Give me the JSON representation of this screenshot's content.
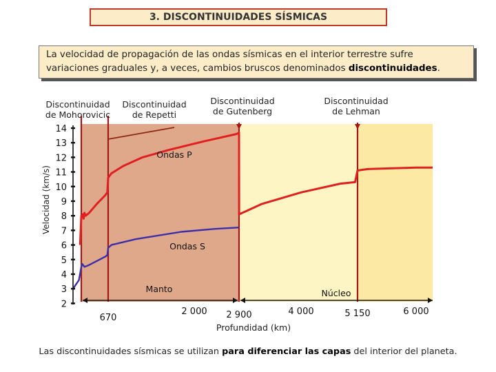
{
  "title": "3. DISCONTINUIDADES SÍSMICAS",
  "intro": {
    "before": "La velocidad de propagación de las ondas sísmicas en el interior terrestre sufre variaciones graduales y, a veces, cambios bruscos denominados ",
    "bold": "discontinuidades",
    "after": "."
  },
  "footer": {
    "part1": "Las discontinuidades sísmicas se utilizan ",
    "bold": "para diferenciar las capas",
    "part2": " del interior del planeta."
  },
  "colors": {
    "mantle": "#dfa88a",
    "core": "#fdf5c4",
    "core_inner": "#fbe9a4",
    "p_wave": "#e02020",
    "s_wave": "#3b2ea8",
    "boundary": "#a01818"
  },
  "discontinuities": [
    {
      "line1": "Discontinuidad",
      "line2": "de Mohorovicic"
    },
    {
      "line1": "Discontinuidad",
      "line2": "de Repetti"
    },
    {
      "line1": "Discontinuidad",
      "line2": "de Gutenberg"
    },
    {
      "line1": "Discontinuidad",
      "line2": "de Lehman"
    }
  ],
  "chart_data": {
    "type": "line",
    "ylabel": "Velocidad (km/s)",
    "xlabel": "Profundidad (km)",
    "y_ticks": [
      "14",
      "13",
      "12",
      "11",
      "10",
      "9",
      "8",
      "7",
      "6",
      "5",
      "4",
      "3",
      "2"
    ],
    "ylim": [
      2,
      14
    ],
    "x_tick_labels": [
      {
        "label": "670",
        "value": 670
      },
      {
        "label": "2 000",
        "value": 2000
      },
      {
        "label": "2 900",
        "value": 2900
      },
      {
        "label": "4 000",
        "value": 4000
      },
      {
        "label": "5 150",
        "value": 5150
      },
      {
        "label": "6 000",
        "value": 6000
      }
    ],
    "boundaries_km": [
      35,
      670,
      2900,
      5150
    ],
    "regions": [
      {
        "label": "Manto",
        "from_km": 35,
        "to_km": 2900
      },
      {
        "label": "Núcleo",
        "from_km": 2900,
        "to_km": 6371
      }
    ],
    "series": [
      {
        "name": "Ondas P",
        "points": [
          [
            30,
            6.0
          ],
          [
            35,
            8.0
          ],
          [
            70,
            8.1
          ],
          [
            90,
            7.8
          ],
          [
            110,
            8.2
          ],
          [
            140,
            8.0
          ],
          [
            220,
            8.2
          ],
          [
            400,
            8.8
          ],
          [
            600,
            9.4
          ],
          [
            650,
            9.6
          ],
          [
            670,
            10.6
          ],
          [
            720,
            10.9
          ],
          [
            900,
            11.4
          ],
          [
            1200,
            12.0
          ],
          [
            1600,
            12.5
          ],
          [
            2200,
            13.1
          ],
          [
            2850,
            13.6
          ],
          [
            2900,
            13.7
          ],
          [
            2901,
            8.1
          ],
          [
            3300,
            8.8
          ],
          [
            4000,
            9.6
          ],
          [
            4800,
            10.2
          ],
          [
            5100,
            10.3
          ],
          [
            5150,
            11.1
          ],
          [
            5300,
            11.2
          ],
          [
            6000,
            11.3
          ],
          [
            6371,
            11.3
          ]
        ]
      },
      {
        "name": "Ondas S",
        "points": [
          [
            0,
            3.0
          ],
          [
            25,
            3.6
          ],
          [
            35,
            4.5
          ],
          [
            60,
            4.7
          ],
          [
            110,
            4.5
          ],
          [
            200,
            4.6
          ],
          [
            400,
            4.9
          ],
          [
            600,
            5.2
          ],
          [
            650,
            5.3
          ],
          [
            670,
            5.8
          ],
          [
            720,
            6.0
          ],
          [
            1100,
            6.4
          ],
          [
            1800,
            6.9
          ],
          [
            2400,
            7.1
          ],
          [
            2900,
            7.2
          ]
        ]
      }
    ]
  }
}
